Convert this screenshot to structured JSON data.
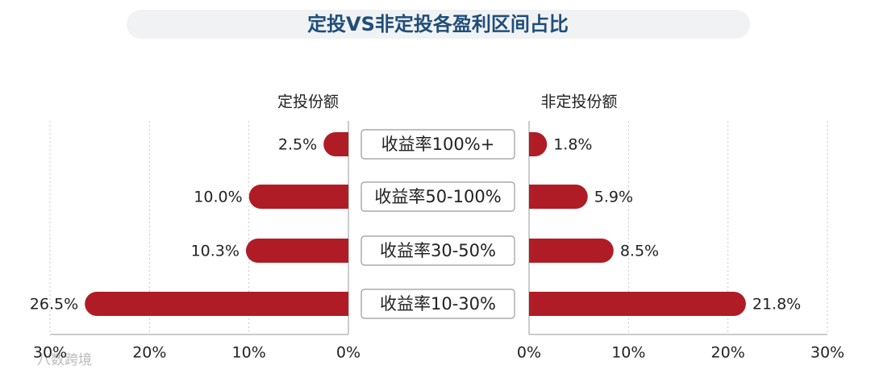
{
  "chart_data": {
    "type": "butterfly",
    "title": "定投VS非定投各盈利区间占比",
    "categories": [
      "收益率100%+",
      "收益率50-100%",
      "收益率30-50%",
      "收益率10-30%"
    ],
    "series": [
      {
        "name": "定投份额",
        "color": "#b01c25",
        "values": [
          2.5,
          10.0,
          10.3,
          26.5
        ],
        "value_labels": [
          "2.5%",
          "10.0%",
          "10.3%",
          "26.5%"
        ]
      },
      {
        "name": "非定投份额",
        "color": "#b01c25",
        "values": [
          1.8,
          5.9,
          8.5,
          21.8
        ],
        "value_labels": [
          "1.8%",
          "5.9%",
          "8.5%",
          "21.8%"
        ]
      }
    ],
    "xlim": [
      0,
      30
    ],
    "xticks": [
      {
        "value": 0,
        "label": "0%"
      },
      {
        "value": 10,
        "label": "10%"
      },
      {
        "value": 20,
        "label": "20%"
      },
      {
        "value": 30,
        "label": "30%"
      }
    ],
    "grid": true,
    "watermark": "八数跨境"
  }
}
